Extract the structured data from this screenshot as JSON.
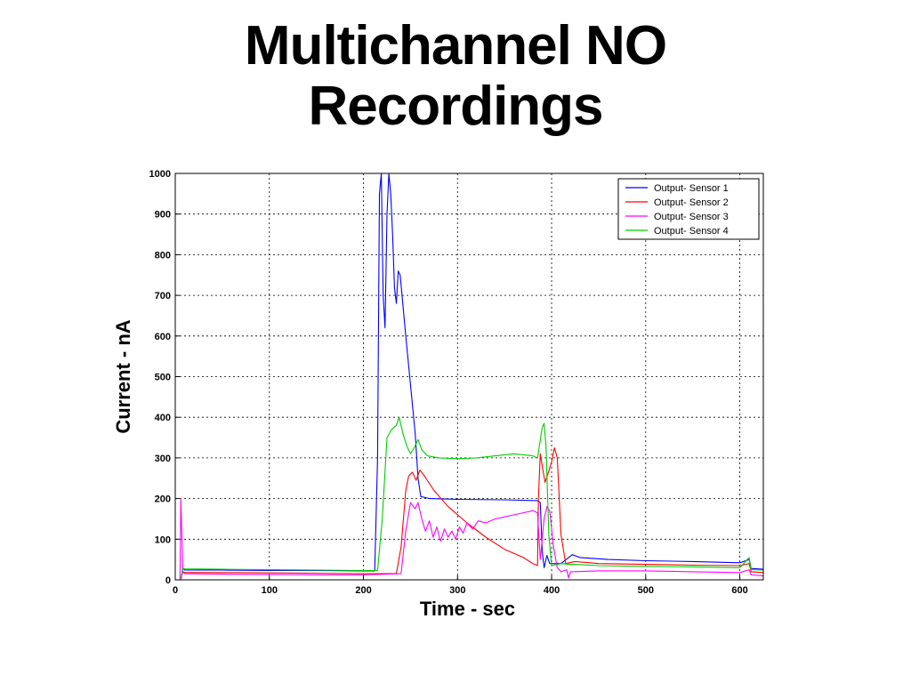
{
  "slide": {
    "title_line1": "Multichannel NO",
    "title_line2": "Recordings"
  },
  "chart_data": {
    "type": "line",
    "xlabel": "Time - sec",
    "ylabel": "Current - nA",
    "xlim": [
      0,
      625
    ],
    "ylim": [
      0,
      1000
    ],
    "xticks": [
      0,
      100,
      200,
      300,
      400,
      500,
      600
    ],
    "yticks": [
      0,
      100,
      200,
      300,
      400,
      500,
      600,
      700,
      800,
      900,
      1000
    ],
    "grid": true,
    "legend_position": "top-right",
    "series": [
      {
        "name": "Output- Sensor 1",
        "color": "#0000ff",
        "points": [
          [
            0,
            0
          ],
          [
            6,
            0
          ],
          [
            8,
            30
          ],
          [
            10,
            24
          ],
          [
            50,
            24
          ],
          [
            100,
            23
          ],
          [
            150,
            23
          ],
          [
            200,
            22
          ],
          [
            212,
            22
          ],
          [
            215,
            300
          ],
          [
            217,
            950
          ],
          [
            219,
            1000
          ],
          [
            221,
            700
          ],
          [
            223,
            620
          ],
          [
            225,
            900
          ],
          [
            227,
            1000
          ],
          [
            229,
            950
          ],
          [
            231,
            850
          ],
          [
            233,
            720
          ],
          [
            235,
            680
          ],
          [
            237,
            760
          ],
          [
            239,
            750
          ],
          [
            241,
            700
          ],
          [
            245,
            600
          ],
          [
            250,
            480
          ],
          [
            255,
            360
          ],
          [
            258,
            250
          ],
          [
            261,
            205
          ],
          [
            270,
            200
          ],
          [
            300,
            198
          ],
          [
            350,
            197
          ],
          [
            385,
            195
          ],
          [
            388,
            190
          ],
          [
            390,
            70
          ],
          [
            392,
            30
          ],
          [
            395,
            60
          ],
          [
            398,
            40
          ],
          [
            402,
            40
          ],
          [
            410,
            40
          ],
          [
            418,
            55
          ],
          [
            422,
            62
          ],
          [
            430,
            55
          ],
          [
            460,
            50
          ],
          [
            500,
            47
          ],
          [
            550,
            45
          ],
          [
            600,
            42
          ],
          [
            610,
            50
          ],
          [
            612,
            28
          ],
          [
            625,
            26
          ]
        ]
      },
      {
        "name": "Output- Sensor 2",
        "color": "#ff0000",
        "points": [
          [
            0,
            0
          ],
          [
            6,
            0
          ],
          [
            8,
            20
          ],
          [
            10,
            18
          ],
          [
            50,
            18
          ],
          [
            100,
            17
          ],
          [
            150,
            16
          ],
          [
            200,
            15
          ],
          [
            220,
            15
          ],
          [
            235,
            15
          ],
          [
            240,
            80
          ],
          [
            245,
            220
          ],
          [
            248,
            255
          ],
          [
            252,
            265
          ],
          [
            256,
            245
          ],
          [
            260,
            270
          ],
          [
            265,
            255
          ],
          [
            275,
            220
          ],
          [
            290,
            180
          ],
          [
            310,
            140
          ],
          [
            330,
            105
          ],
          [
            350,
            75
          ],
          [
            370,
            55
          ],
          [
            380,
            40
          ],
          [
            385,
            35
          ],
          [
            386,
            200
          ],
          [
            388,
            310
          ],
          [
            390,
            280
          ],
          [
            393,
            240
          ],
          [
            396,
            260
          ],
          [
            400,
            290
          ],
          [
            403,
            325
          ],
          [
            406,
            300
          ],
          [
            410,
            110
          ],
          [
            415,
            40
          ],
          [
            425,
            45
          ],
          [
            450,
            40
          ],
          [
            500,
            38
          ],
          [
            550,
            36
          ],
          [
            600,
            35
          ],
          [
            610,
            40
          ],
          [
            612,
            20
          ],
          [
            625,
            18
          ]
        ]
      },
      {
        "name": "Output- Sensor 3",
        "color": "#ff00ff",
        "points": [
          [
            0,
            0
          ],
          [
            5,
            0
          ],
          [
            6,
            200
          ],
          [
            8,
            20
          ],
          [
            10,
            15
          ],
          [
            50,
            14
          ],
          [
            100,
            13
          ],
          [
            150,
            12
          ],
          [
            200,
            12
          ],
          [
            240,
            15
          ],
          [
            245,
            120
          ],
          [
            250,
            190
          ],
          [
            255,
            175
          ],
          [
            258,
            190
          ],
          [
            262,
            150
          ],
          [
            266,
            120
          ],
          [
            270,
            145
          ],
          [
            274,
            105
          ],
          [
            278,
            130
          ],
          [
            282,
            95
          ],
          [
            286,
            125
          ],
          [
            290,
            105
          ],
          [
            294,
            120
          ],
          [
            298,
            100
          ],
          [
            302,
            130
          ],
          [
            306,
            115
          ],
          [
            310,
            140
          ],
          [
            316,
            125
          ],
          [
            322,
            145
          ],
          [
            330,
            140
          ],
          [
            340,
            150
          ],
          [
            350,
            155
          ],
          [
            360,
            160
          ],
          [
            370,
            165
          ],
          [
            380,
            170
          ],
          [
            385,
            165
          ],
          [
            388,
            50
          ],
          [
            392,
            150
          ],
          [
            395,
            180
          ],
          [
            398,
            170
          ],
          [
            402,
            80
          ],
          [
            406,
            30
          ],
          [
            410,
            20
          ],
          [
            416,
            25
          ],
          [
            418,
            5
          ],
          [
            420,
            20
          ],
          [
            450,
            22
          ],
          [
            500,
            22
          ],
          [
            550,
            20
          ],
          [
            600,
            18
          ],
          [
            610,
            25
          ],
          [
            612,
            12
          ],
          [
            625,
            10
          ]
        ]
      },
      {
        "name": "Output- Sensor 4",
        "color": "#00cc00",
        "points": [
          [
            0,
            0
          ],
          [
            6,
            0
          ],
          [
            8,
            28
          ],
          [
            10,
            27
          ],
          [
            50,
            26
          ],
          [
            100,
            25
          ],
          [
            150,
            24
          ],
          [
            200,
            23
          ],
          [
            215,
            23
          ],
          [
            220,
            150
          ],
          [
            225,
            350
          ],
          [
            230,
            370
          ],
          [
            235,
            380
          ],
          [
            238,
            400
          ],
          [
            242,
            360
          ],
          [
            246,
            330
          ],
          [
            250,
            310
          ],
          [
            254,
            325
          ],
          [
            258,
            345
          ],
          [
            262,
            320
          ],
          [
            268,
            305
          ],
          [
            280,
            300
          ],
          [
            300,
            298
          ],
          [
            320,
            300
          ],
          [
            340,
            305
          ],
          [
            360,
            310
          ],
          [
            380,
            305
          ],
          [
            385,
            300
          ],
          [
            387,
            330
          ],
          [
            390,
            375
          ],
          [
            392,
            385
          ],
          [
            394,
            330
          ],
          [
            397,
            110
          ],
          [
            400,
            35
          ],
          [
            410,
            40
          ],
          [
            420,
            38
          ],
          [
            425,
            38
          ],
          [
            450,
            35
          ],
          [
            500,
            33
          ],
          [
            550,
            32
          ],
          [
            600,
            30
          ],
          [
            610,
            55
          ],
          [
            612,
            25
          ],
          [
            625,
            24
          ]
        ]
      }
    ]
  }
}
